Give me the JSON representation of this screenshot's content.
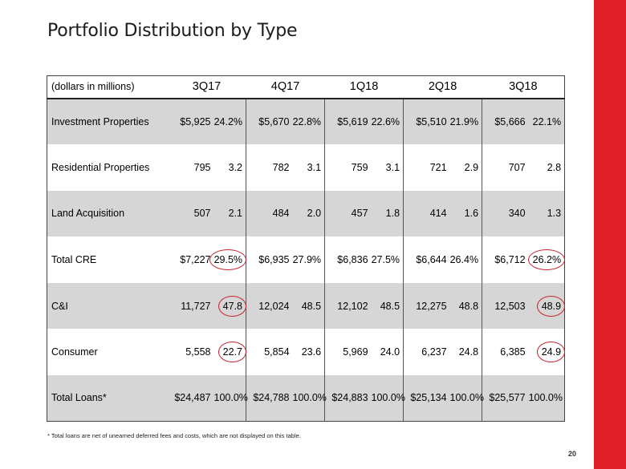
{
  "title": "Portfolio Distribution by Type",
  "table": {
    "unit_label": "(dollars in millions)",
    "quarters": [
      "3Q17",
      "4Q17",
      "1Q18",
      "2Q18",
      "3Q18"
    ],
    "rows": [
      {
        "label": "Investment Properties",
        "cells": [
          [
            "$5,925",
            "24.2%"
          ],
          [
            "$5,670",
            "22.8%"
          ],
          [
            "$5,619",
            "22.6%"
          ],
          [
            "$5,510",
            "21.9%"
          ],
          [
            "$5,666",
            "22.1%"
          ]
        ]
      },
      {
        "label": "Residential Properties",
        "cells": [
          [
            "795",
            "3.2"
          ],
          [
            "782",
            "3.1"
          ],
          [
            "759",
            "3.1"
          ],
          [
            "721",
            "2.9"
          ],
          [
            "707",
            "2.8"
          ]
        ]
      },
      {
        "label": "Land Acquisition",
        "cells": [
          [
            "507",
            "2.1"
          ],
          [
            "484",
            "2.0"
          ],
          [
            "457",
            "1.8"
          ],
          [
            "414",
            "1.6"
          ],
          [
            "340",
            "1.3"
          ]
        ]
      },
      {
        "label": "Total CRE",
        "cells": [
          [
            "$7,227",
            "29.5%"
          ],
          [
            "$6,935",
            "27.9%"
          ],
          [
            "$6,836",
            "27.5%"
          ],
          [
            "$6,644",
            "26.4%"
          ],
          [
            "$6,712",
            "26.2%"
          ]
        ]
      },
      {
        "label": "C&I",
        "cells": [
          [
            "11,727",
            "47.8"
          ],
          [
            "12,024",
            "48.5"
          ],
          [
            "12,102",
            "48.5"
          ],
          [
            "12,275",
            "48.8"
          ],
          [
            "12,503",
            "48.9"
          ]
        ]
      },
      {
        "label": "Consumer",
        "cells": [
          [
            "5,558",
            "22.7"
          ],
          [
            "5,854",
            "23.6"
          ],
          [
            "5,969",
            "24.0"
          ],
          [
            "6,237",
            "24.8"
          ],
          [
            "6,385",
            "24.9"
          ]
        ]
      },
      {
        "label": "Total Loans*",
        "cells": [
          [
            "$24,487",
            "100.0%"
          ],
          [
            "$24,788",
            "100.0%"
          ],
          [
            "$24,883",
            "100.0%"
          ],
          [
            "$25,134",
            "100.0%"
          ],
          [
            "$25,577",
            "100.0%"
          ]
        ]
      }
    ]
  },
  "footnote": "* Total loans are net of unearned deferred fees and costs, which are not displayed on this table.",
  "page_number": "20",
  "colors": {
    "accent": "#e01f26",
    "row_shade": "#d6d6d6",
    "circle": "#c8202a"
  }
}
